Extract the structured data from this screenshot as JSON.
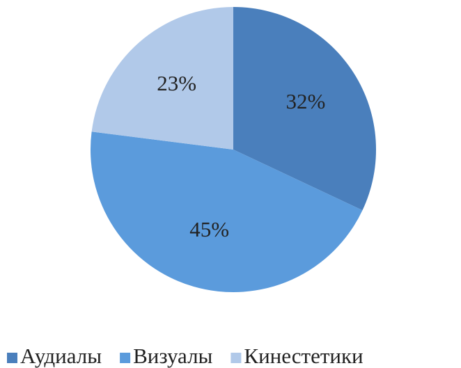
{
  "chart_data": {
    "type": "pie",
    "categories": [
      "Аудиалы",
      "Визуалы",
      "Кинестетики"
    ],
    "values": [
      32,
      45,
      23
    ],
    "value_labels": [
      "32%",
      "45%",
      "23%"
    ],
    "colors": [
      "#4a7fbc",
      "#5b9bdc",
      "#b1c9e9"
    ],
    "legend": "bottom"
  }
}
